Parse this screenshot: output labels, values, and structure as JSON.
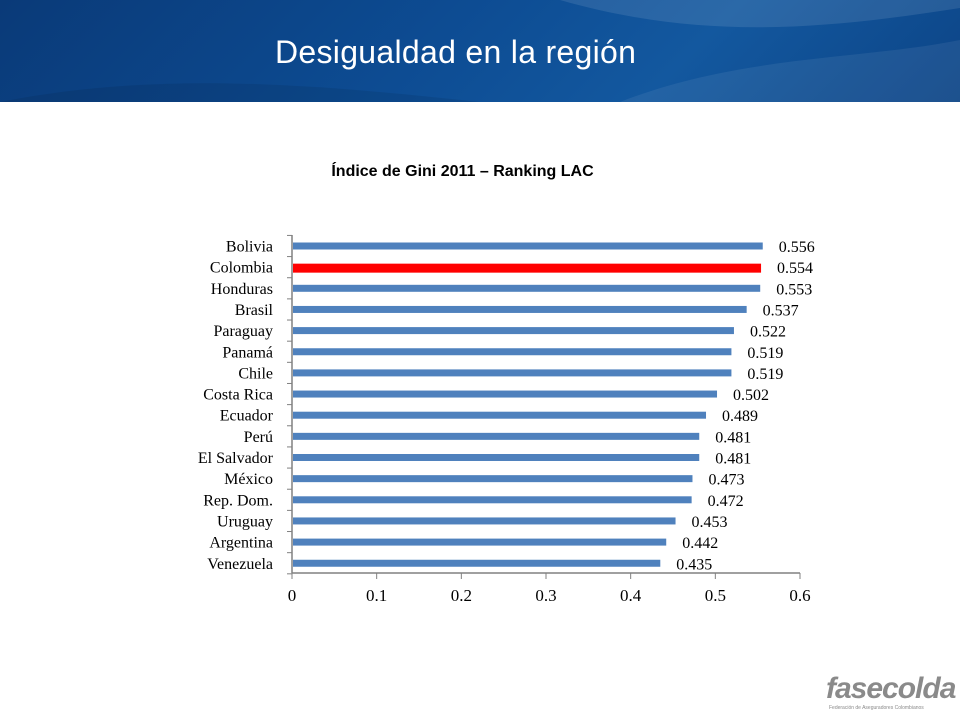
{
  "header": {
    "title": "Desigualdad en la región"
  },
  "logo": {
    "brand": "fasecolda",
    "subtitle": "Federación de Aseguradores Colombianos"
  },
  "chart_data": {
    "type": "bar",
    "orientation": "horizontal",
    "title": "Índice de Gini 2011 – Ranking LAC",
    "categories": [
      "Bolivia",
      "Colombia",
      "Honduras",
      "Brasil",
      "Paraguay",
      "Panamá",
      "Chile",
      "Costa Rica",
      "Ecuador",
      "Perú",
      "El Salvador",
      "México",
      "Rep. Dom.",
      "Uruguay",
      "Argentina",
      "Venezuela"
    ],
    "values": [
      0.556,
      0.554,
      0.553,
      0.537,
      0.522,
      0.519,
      0.519,
      0.502,
      0.489,
      0.481,
      0.481,
      0.473,
      0.472,
      0.453,
      0.442,
      0.435
    ],
    "value_labels": [
      "0.556",
      "0.554",
      "0.553",
      "0.537",
      "0.522",
      "0.519",
      "0.519",
      "0.502",
      "0.489",
      "0.481",
      "0.481",
      "0.473",
      "0.472",
      "0.453",
      "0.442",
      "0.435"
    ],
    "xlim": [
      0,
      0.6
    ],
    "xticks": [
      0,
      0.1,
      0.2,
      0.3,
      0.4,
      0.5,
      0.6
    ],
    "xtick_labels": [
      "0",
      "0.1",
      "0.2",
      "0.3",
      "0.4",
      "0.5",
      "0.6"
    ],
    "bar_color": "#4f81bd",
    "highlight": {
      "category": "Colombia",
      "color": "#ff0000"
    },
    "grid": false
  }
}
